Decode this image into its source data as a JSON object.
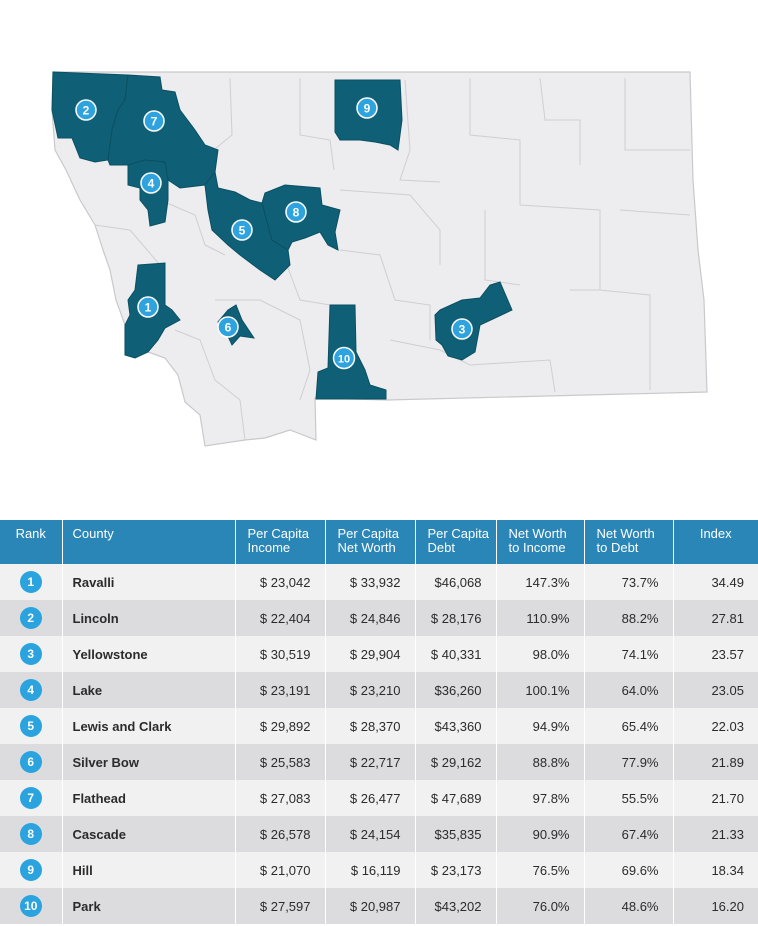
{
  "map": {
    "markers": [
      "1",
      "2",
      "3",
      "4",
      "5",
      "6",
      "7",
      "8",
      "9",
      "10"
    ]
  },
  "table": {
    "headers": {
      "rank": "Rank",
      "county": "County",
      "income_1": "Per Capita",
      "income_2": "Income",
      "networth_1": "Per Capita",
      "networth_2": "Net Worth",
      "debt_1": "Per Capita",
      "debt_2": "Debt",
      "nwi_1": "Net Worth",
      "nwi_2": "to Income",
      "nwd_1": "Net Worth",
      "nwd_2": "to Debt",
      "index": "Index"
    },
    "rows": [
      {
        "rank": "1",
        "county": "Ravalli",
        "income": "$ 23,042",
        "networth": "$ 33,932",
        "debt": "$46,068",
        "nwi": "147.3%",
        "nwd": "73.7%",
        "index": "34.49"
      },
      {
        "rank": "2",
        "county": "Lincoln",
        "income": "$ 22,404",
        "networth": "$ 24,846",
        "debt": "$ 28,176",
        "nwi": "110.9%",
        "nwd": "88.2%",
        "index": "27.81"
      },
      {
        "rank": "3",
        "county": "Yellowstone",
        "income": "$ 30,519",
        "networth": "$ 29,904",
        "debt": "$ 40,331",
        "nwi": "98.0%",
        "nwd": "74.1%",
        "index": "23.57"
      },
      {
        "rank": "4",
        "county": "Lake",
        "income": "$ 23,191",
        "networth": "$ 23,210",
        "debt": "$36,260",
        "nwi": "100.1%",
        "nwd": "64.0%",
        "index": "23.05"
      },
      {
        "rank": "5",
        "county": "Lewis and Clark",
        "income": "$ 29,892",
        "networth": "$ 28,370",
        "debt": "$43,360",
        "nwi": "94.9%",
        "nwd": "65.4%",
        "index": "22.03"
      },
      {
        "rank": "6",
        "county": "Silver Bow",
        "income": "$ 25,583",
        "networth": "$ 22,717",
        "debt": "$ 29,162",
        "nwi": "88.8%",
        "nwd": "77.9%",
        "index": "21.89"
      },
      {
        "rank": "7",
        "county": "Flathead",
        "income": "$ 27,083",
        "networth": "$ 26,477",
        "debt": "$ 47,689",
        "nwi": "97.8%",
        "nwd": "55.5%",
        "index": "21.70"
      },
      {
        "rank": "8",
        "county": "Cascade",
        "income": "$ 26,578",
        "networth": "$ 24,154",
        "debt": "$35,835",
        "nwi": "90.9%",
        "nwd": "67.4%",
        "index": "21.33"
      },
      {
        "rank": "9",
        "county": "Hill",
        "income": "$ 21,070",
        "networth": "$ 16,119",
        "debt": "$ 23,173",
        "nwi": "76.5%",
        "nwd": "69.6%",
        "index": "18.34"
      },
      {
        "rank": "10",
        "county": "Park",
        "income": "$ 27,597",
        "networth": "$ 20,987",
        "debt": "$43,202",
        "nwi": "76.0%",
        "nwd": "48.6%",
        "index": "16.20"
      }
    ]
  },
  "colors": {
    "highlight_county": "#0f6076",
    "marker": "#2fa3dd",
    "header_bg": "#2b86b8",
    "row_light": "#f1f1f2",
    "row_dark": "#dcdcde"
  }
}
